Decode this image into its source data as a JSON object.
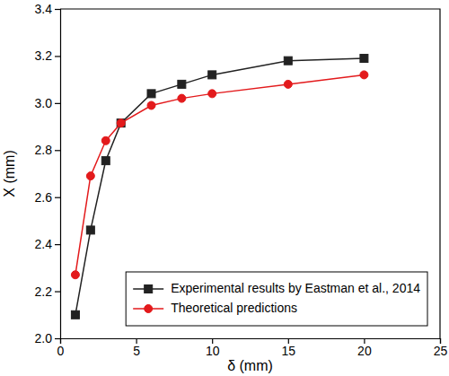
{
  "chart_data": {
    "type": "line",
    "x_label": "δ (mm)",
    "y_label": "X (mm)",
    "x": [
      1,
      2,
      3,
      4,
      6,
      8,
      10,
      15,
      20
    ],
    "series": [
      {
        "name": "Experimental results by Eastman et al., 2014",
        "color": "#222222",
        "marker": "square",
        "line_style": "solid",
        "values": [
          2.1,
          2.46,
          2.755,
          2.915,
          3.04,
          3.08,
          3.12,
          3.18,
          3.19
        ]
      },
      {
        "name": "Theoretical predictions",
        "color": "#e31a1c",
        "marker": "circle",
        "line_style": "solid",
        "values": [
          2.27,
          2.69,
          2.84,
          2.915,
          2.99,
          3.02,
          3.04,
          3.08,
          3.12
        ]
      }
    ],
    "xlim": [
      0,
      25
    ],
    "xticks": [
      0,
      5,
      10,
      15,
      20,
      25
    ],
    "ylim": [
      2.0,
      3.4
    ],
    "yticks": [
      {
        "value": 2.0,
        "label": "2.0"
      },
      2.2,
      2.4,
      2.6,
      2.8,
      {
        "value": 3.0,
        "label": "3.0"
      },
      3.2,
      3.4
    ],
    "grid": false,
    "legend": "lower right"
  }
}
